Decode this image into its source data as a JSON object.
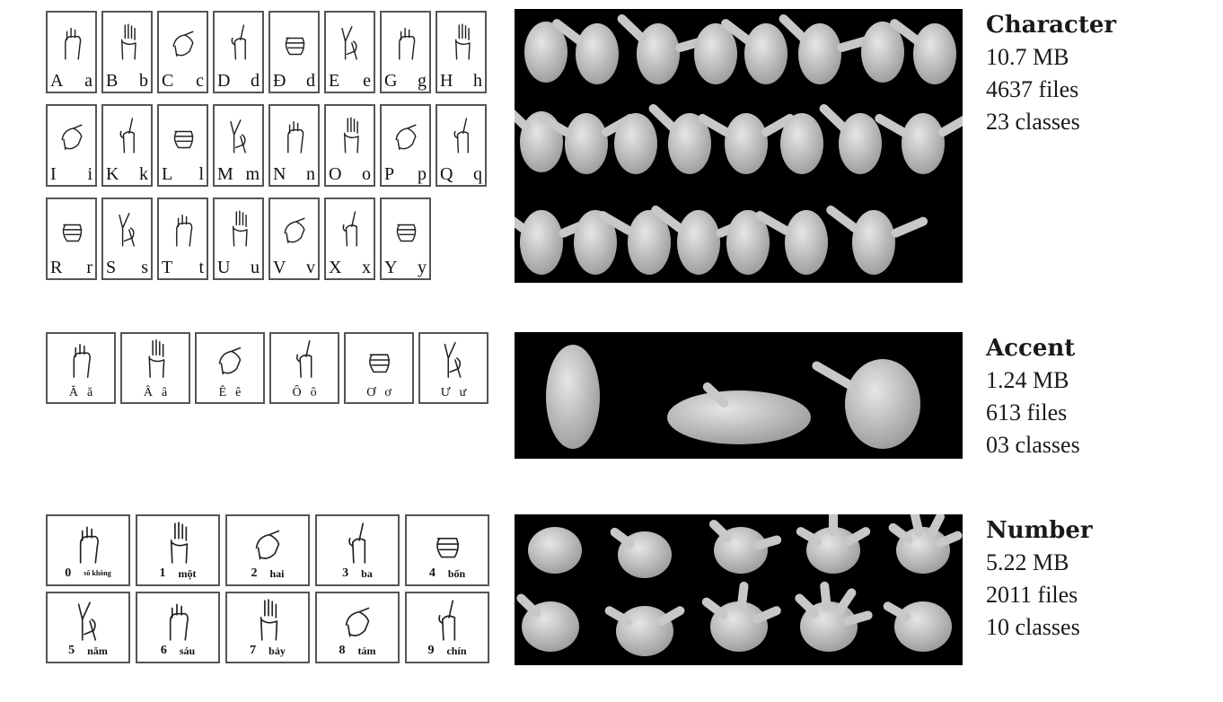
{
  "character": {
    "title": "Character",
    "size": "10.7 MB",
    "files": "4637 files",
    "classes": "23 classes",
    "cards": [
      [
        "A",
        "a"
      ],
      [
        "B",
        "b"
      ],
      [
        "C",
        "c"
      ],
      [
        "D",
        "d"
      ],
      [
        "Đ",
        "d"
      ],
      [
        "E",
        "e"
      ],
      [
        "G",
        "g"
      ],
      [
        "H",
        "h"
      ],
      [
        "I",
        "i"
      ],
      [
        "K",
        "k"
      ],
      [
        "L",
        "l"
      ],
      [
        "M",
        "m"
      ],
      [
        "N",
        "n"
      ],
      [
        "O",
        "o"
      ],
      [
        "P",
        "p"
      ],
      [
        "Q",
        "q"
      ],
      [
        "R",
        "r"
      ],
      [
        "S",
        "s"
      ],
      [
        "T",
        "t"
      ],
      [
        "U",
        "u"
      ],
      [
        "V",
        "v"
      ],
      [
        "X",
        "x"
      ],
      [
        "Y",
        "y"
      ]
    ]
  },
  "accent": {
    "title": "Accent",
    "size": "1.24 MB",
    "files": "613 files",
    "classes": "03 classes",
    "cards": [
      [
        "Ă",
        "ă"
      ],
      [
        "Â",
        "â"
      ],
      [
        "Ê",
        "ê"
      ],
      [
        "Ô",
        "ô"
      ],
      [
        "Ơ",
        "ơ"
      ],
      [
        "Ư",
        "ư"
      ]
    ]
  },
  "number": {
    "title": "Number",
    "size": "5.22 MB",
    "files": "2011 files",
    "classes": "10 classes",
    "cards": [
      [
        "0",
        "số không"
      ],
      [
        "1",
        "một"
      ],
      [
        "2",
        "hai"
      ],
      [
        "3",
        "ba"
      ],
      [
        "4",
        "bốn"
      ],
      [
        "5",
        "năm"
      ],
      [
        "6",
        "sáu"
      ],
      [
        "7",
        "bảy"
      ],
      [
        "8",
        "tám"
      ],
      [
        "9",
        "chín"
      ]
    ]
  }
}
